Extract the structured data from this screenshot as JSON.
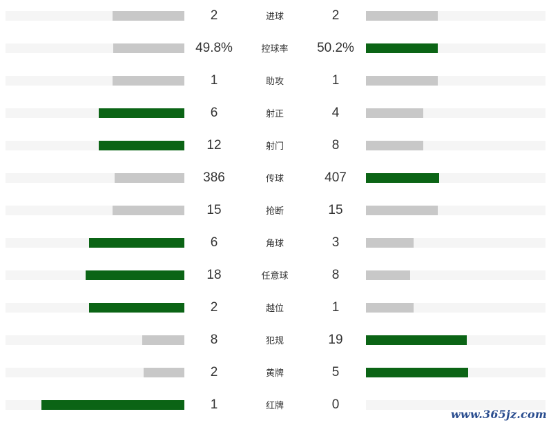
{
  "chart_data": {
    "type": "bar",
    "orientation": "horizontal-mirrored",
    "highlight_color": "#0b6415",
    "neutral_color": "#c8c8c8",
    "track_color": "#f5f5f5",
    "rows": [
      {
        "label": "进球",
        "left_text": "2",
        "right_text": "2",
        "left": 2,
        "right": 2
      },
      {
        "label": "控球率",
        "left_text": "49.8%",
        "right_text": "50.2%",
        "left": 49.8,
        "right": 50.2
      },
      {
        "label": "助攻",
        "left_text": "1",
        "right_text": "1",
        "left": 1,
        "right": 1
      },
      {
        "label": "射正",
        "left_text": "6",
        "right_text": "4",
        "left": 6,
        "right": 4
      },
      {
        "label": "射门",
        "left_text": "12",
        "right_text": "8",
        "left": 12,
        "right": 8
      },
      {
        "label": "传球",
        "left_text": "386",
        "right_text": "407",
        "left": 386,
        "right": 407
      },
      {
        "label": "抢断",
        "left_text": "15",
        "right_text": "15",
        "left": 15,
        "right": 15
      },
      {
        "label": "角球",
        "left_text": "6",
        "right_text": "3",
        "left": 6,
        "right": 3
      },
      {
        "label": "任意球",
        "left_text": "18",
        "right_text": "8",
        "left": 18,
        "right": 8
      },
      {
        "label": "越位",
        "left_text": "2",
        "right_text": "1",
        "left": 2,
        "right": 1
      },
      {
        "label": "犯规",
        "left_text": "8",
        "right_text": "19",
        "left": 8,
        "right": 19
      },
      {
        "label": "黄牌",
        "left_text": "2",
        "right_text": "5",
        "left": 2,
        "right": 5
      },
      {
        "label": "红牌",
        "left_text": "1",
        "right_text": "0",
        "left": 1,
        "right": 0
      }
    ]
  },
  "watermark": "www.365jz.com"
}
